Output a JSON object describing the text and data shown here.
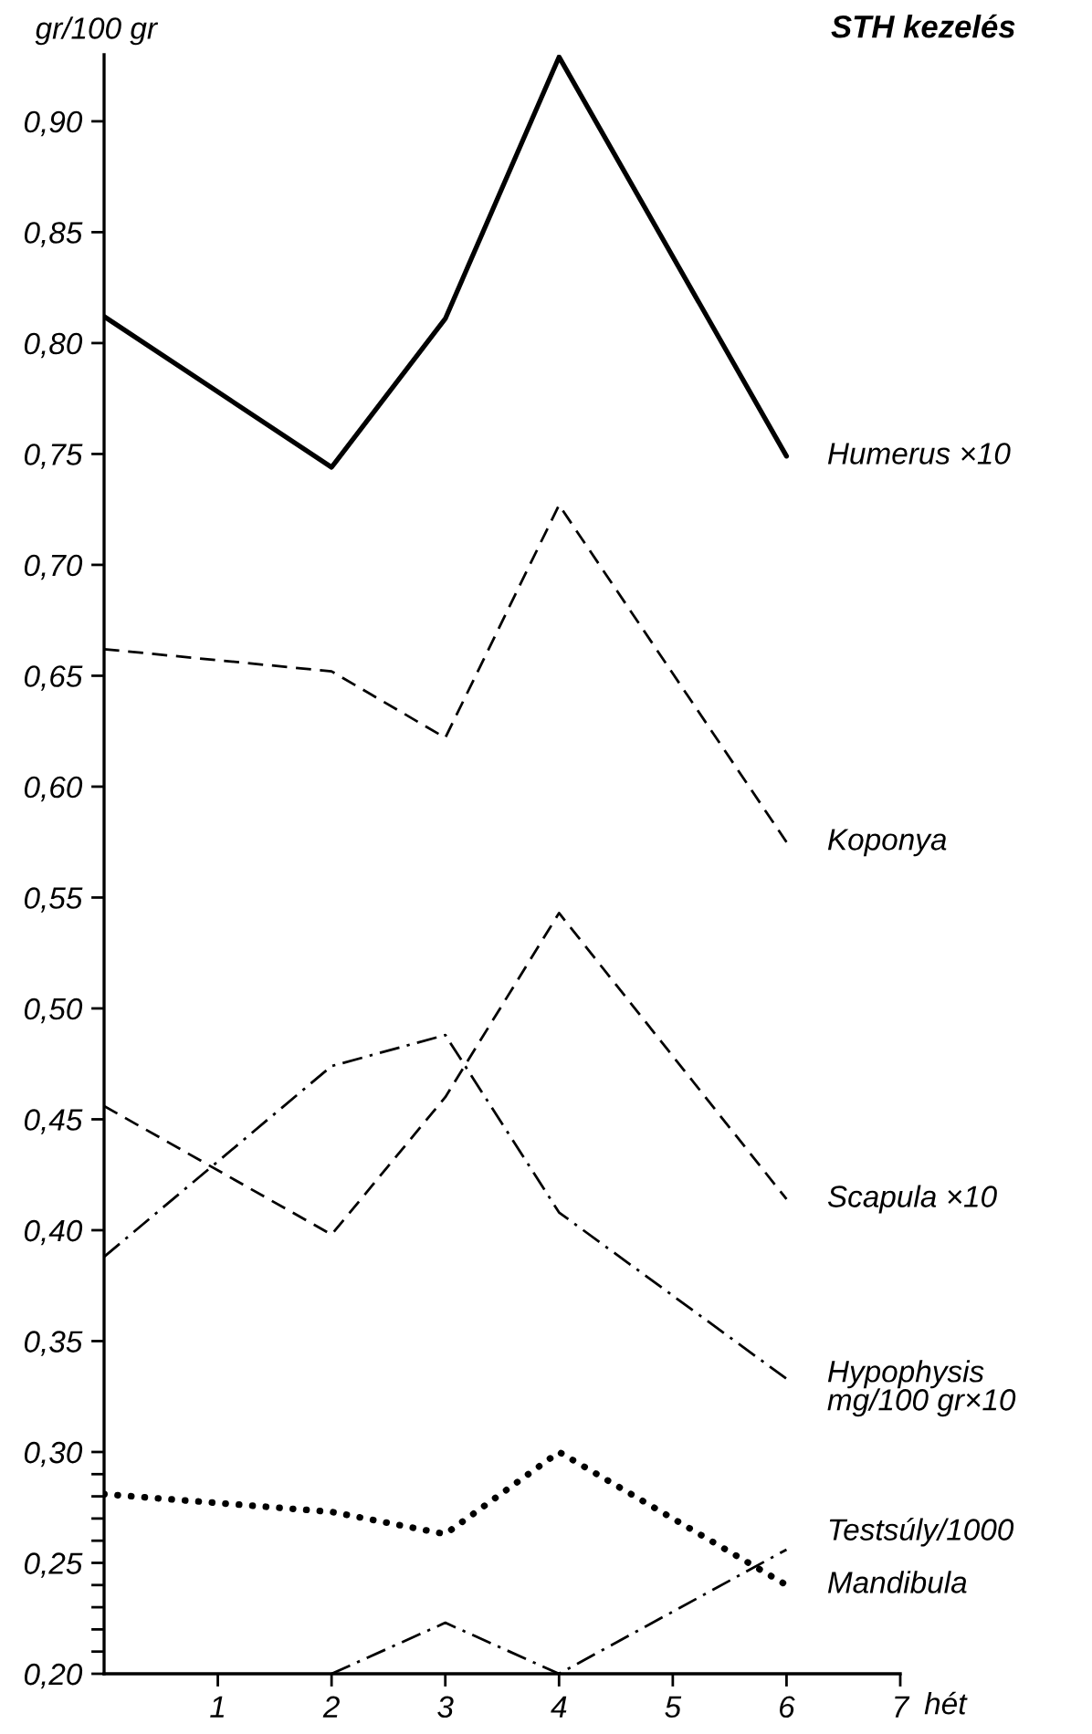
{
  "chart_data": {
    "type": "line",
    "title": "STH kezelés",
    "xlabel": "hét",
    "ylabel": "gr/100 gr",
    "xlim": [
      0,
      7
    ],
    "xticks": [
      1,
      2,
      3,
      4,
      5,
      6,
      7
    ],
    "ylim": [
      0.2,
      0.93
    ],
    "yticks": [
      {
        "value": 0.2,
        "label": "0,20"
      },
      {
        "value": 0.21,
        "label": null
      },
      {
        "value": 0.22,
        "label": null
      },
      {
        "value": 0.23,
        "label": null
      },
      {
        "value": 0.24,
        "label": null
      },
      {
        "value": 0.25,
        "label": "0,25"
      },
      {
        "value": 0.26,
        "label": null
      },
      {
        "value": 0.27,
        "label": null
      },
      {
        "value": 0.28,
        "label": null
      },
      {
        "value": 0.29,
        "label": null
      },
      {
        "value": 0.3,
        "label": "0,30"
      },
      {
        "value": 0.35,
        "label": "0,35"
      },
      {
        "value": 0.4,
        "label": "0,40"
      },
      {
        "value": 0.45,
        "label": "0,45"
      },
      {
        "value": 0.5,
        "label": "0,50"
      },
      {
        "value": 0.55,
        "label": "0,55"
      },
      {
        "value": 0.6,
        "label": "0,60"
      },
      {
        "value": 0.65,
        "label": "0,65"
      },
      {
        "value": 0.7,
        "label": "0,70"
      },
      {
        "value": 0.75,
        "label": "0,75"
      },
      {
        "value": 0.8,
        "label": "0,80"
      },
      {
        "value": 0.85,
        "label": "0,85"
      },
      {
        "value": 0.9,
        "label": "0,90"
      }
    ],
    "series": [
      {
        "name": "Humerus ×10",
        "color": "#000000",
        "line_style": "solid",
        "x": [
          0,
          2,
          3,
          4,
          6
        ],
        "values": [
          0.812,
          0.744,
          0.811,
          0.929,
          0.749
        ]
      },
      {
        "name": "Koponya",
        "color": "#000000",
        "line_style": "dashed",
        "x": [
          0,
          2,
          3,
          4,
          6
        ],
        "values": [
          0.662,
          0.652,
          0.622,
          0.727,
          0.575
        ]
      },
      {
        "name": "Scapula ×10",
        "color": "#000000",
        "line_style": "dashed",
        "x": [
          0,
          2,
          3,
          4,
          6
        ],
        "values": [
          0.456,
          0.398,
          0.46,
          0.543,
          0.414
        ]
      },
      {
        "name": "Hypophysis\nmg/100 gr×10",
        "color": "#000000",
        "line_style": "dashdot",
        "x": [
          0,
          2,
          3,
          4,
          6
        ],
        "values": [
          0.388,
          0.474,
          0.488,
          0.408,
          0.333
        ]
      },
      {
        "name": "Testsúly/1000",
        "color": "#000000",
        "line_style": "dashdot",
        "x": [
          2,
          3,
          4,
          6
        ],
        "values": [
          0.2,
          0.223,
          0.2,
          0.256
        ]
      },
      {
        "name": "Mandibula",
        "color": "#000000",
        "line_style": "dotted",
        "x": [
          0,
          2,
          3,
          4,
          6
        ],
        "values": [
          0.281,
          0.273,
          0.263,
          0.3,
          0.24
        ]
      }
    ]
  }
}
